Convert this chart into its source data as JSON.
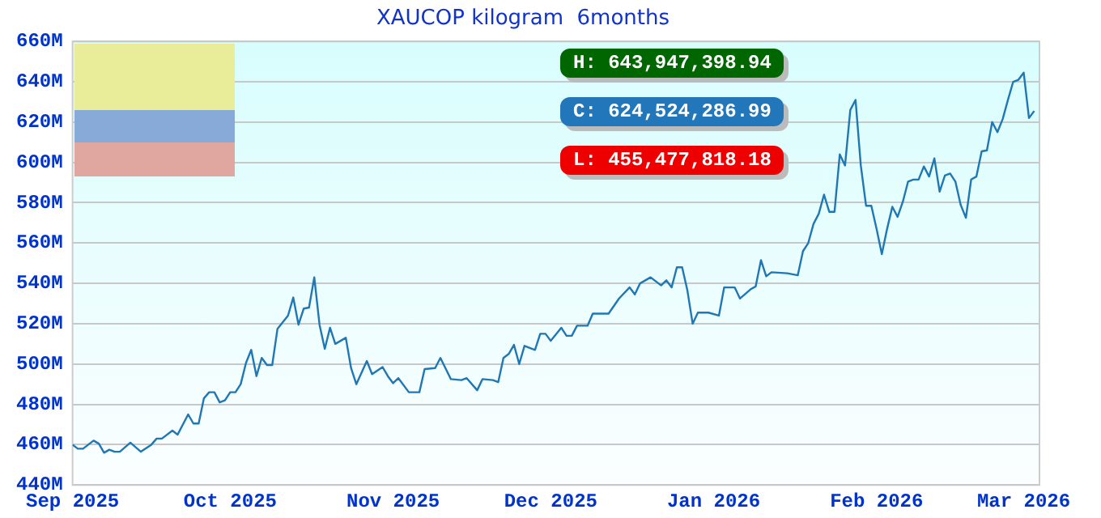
{
  "chart_data": {
    "type": "line",
    "title": "XAUCOP kilogram  6months",
    "annotations": [
      "H: 643,947,398.94",
      "C: 624,524,286.99",
      "L: 455,477,818.18"
    ],
    "xlim": [
      "2025-09-01",
      "2026-03-04"
    ],
    "xticks": [
      {
        "value": "2025-09-01",
        "label": "Sep 2025"
      },
      {
        "value": "2025-10-01",
        "label": "Oct 2025"
      },
      {
        "value": "2025-11-01",
        "label": "Nov 2025"
      },
      {
        "value": "2025-12-01",
        "label": "Dec 2025"
      },
      {
        "value": "2026-01-01",
        "label": "Jan 2026"
      },
      {
        "value": "2026-02-01",
        "label": "Feb 2026"
      },
      {
        "value": "2026-03-01",
        "label": "Mar 2026"
      }
    ],
    "ylim": [
      440,
      660
    ],
    "yticks": [
      {
        "value": 440,
        "label": "440M"
      },
      {
        "value": 460,
        "label": "460M"
      },
      {
        "value": 480,
        "label": "480M"
      },
      {
        "value": 500,
        "label": "500M"
      },
      {
        "value": 520,
        "label": "520M"
      },
      {
        "value": 540,
        "label": "540M"
      },
      {
        "value": 560,
        "label": "560M"
      },
      {
        "value": 580,
        "label": "580M"
      },
      {
        "value": 600,
        "label": "600M"
      },
      {
        "value": 620,
        "label": "620M"
      },
      {
        "value": 640,
        "label": "640M"
      },
      {
        "value": 660,
        "label": "660M"
      }
    ],
    "grid": "y",
    "legend": false,
    "marker": "none",
    "line_style": "solid",
    "series": [
      {
        "color": "#1f77b4",
        "x": [
          "2025-09-01",
          "2025-09-02",
          "2025-09-03",
          "2025-09-05",
          "2025-09-06",
          "2025-09-07",
          "2025-09-08",
          "2025-09-09",
          "2025-09-10",
          "2025-09-12",
          "2025-09-14",
          "2025-09-16",
          "2025-09-17",
          "2025-09-18",
          "2025-09-20",
          "2025-09-21",
          "2025-09-23",
          "2025-09-24",
          "2025-09-25",
          "2025-09-26",
          "2025-09-27",
          "2025-09-28",
          "2025-09-29",
          "2025-09-30",
          "2025-10-01",
          "2025-10-02",
          "2025-10-03",
          "2025-10-04",
          "2025-10-05",
          "2025-10-06",
          "2025-10-07",
          "2025-10-08",
          "2025-10-09",
          "2025-10-10",
          "2025-10-12",
          "2025-10-13",
          "2025-10-14",
          "2025-10-15",
          "2025-10-16",
          "2025-10-17",
          "2025-10-18",
          "2025-10-19",
          "2025-10-20",
          "2025-10-21",
          "2025-10-23",
          "2025-10-24",
          "2025-10-25",
          "2025-10-27",
          "2025-10-28",
          "2025-10-30",
          "2025-10-31",
          "2025-11-01",
          "2025-11-02",
          "2025-11-04",
          "2025-11-06",
          "2025-11-07",
          "2025-11-09",
          "2025-11-10",
          "2025-11-12",
          "2025-11-14",
          "2025-11-15",
          "2025-11-17",
          "2025-11-18",
          "2025-11-20",
          "2025-11-21",
          "2025-11-22",
          "2025-11-23",
          "2025-11-24",
          "2025-11-25",
          "2025-11-26",
          "2025-11-28",
          "2025-11-29",
          "2025-11-30",
          "2025-12-01",
          "2025-12-03",
          "2025-12-04",
          "2025-12-05",
          "2025-12-06",
          "2025-12-08",
          "2025-12-09",
          "2025-12-12",
          "2025-12-14",
          "2025-12-16",
          "2025-12-17",
          "2025-12-18",
          "2025-12-20",
          "2025-12-22",
          "2025-12-23",
          "2025-12-24",
          "2025-12-25",
          "2025-12-26",
          "2025-12-27",
          "2025-12-28",
          "2025-12-29",
          "2025-12-31",
          "2026-01-02",
          "2026-01-03",
          "2026-01-05",
          "2026-01-06",
          "2026-01-08",
          "2026-01-09",
          "2026-01-10",
          "2026-01-11",
          "2026-01-12",
          "2026-01-15",
          "2026-01-17",
          "2026-01-18",
          "2026-01-19",
          "2026-01-20",
          "2026-01-21",
          "2026-01-22",
          "2026-01-23",
          "2026-01-24",
          "2026-01-25",
          "2026-01-26",
          "2026-01-27",
          "2026-01-28",
          "2026-01-29",
          "2026-01-30",
          "2026-01-31",
          "2026-02-01",
          "2026-02-02",
          "2026-02-03",
          "2026-02-04",
          "2026-02-05",
          "2026-02-06",
          "2026-02-07",
          "2026-02-08",
          "2026-02-09",
          "2026-02-10",
          "2026-02-11",
          "2026-02-12",
          "2026-02-13",
          "2026-02-14",
          "2026-02-15",
          "2026-02-16",
          "2026-02-17",
          "2026-02-18",
          "2026-02-19",
          "2026-02-20",
          "2026-02-21",
          "2026-02-22",
          "2026-02-23",
          "2026-02-24",
          "2026-02-25",
          "2026-02-26",
          "2026-02-27",
          "2026-02-28",
          "2026-03-01",
          "2026-03-02",
          "2026-03-03"
        ],
        "values": [
          460,
          458,
          458,
          462,
          460.5,
          456,
          457.5,
          456.5,
          456.5,
          461,
          456.5,
          460,
          463,
          463,
          467,
          465,
          475,
          470.5,
          470.5,
          483,
          486,
          486,
          481,
          482,
          486,
          486,
          490,
          500.5,
          507,
          494,
          503,
          499.5,
          499.5,
          517.5,
          524,
          533,
          519.5,
          527.5,
          528,
          543,
          519.5,
          507.5,
          518,
          510,
          513,
          498,
          490,
          501.5,
          495,
          498.5,
          494,
          490.5,
          493,
          486,
          486,
          497.5,
          498,
          503,
          492.5,
          492,
          493,
          487,
          492.5,
          492,
          491,
          503,
          505,
          509.5,
          500,
          509,
          507,
          515,
          515,
          511.5,
          518,
          514,
          514,
          519,
          519,
          525,
          525,
          532.5,
          538,
          534.5,
          540,
          543,
          539,
          541.5,
          538,
          548,
          548,
          536.5,
          520,
          525.5,
          525.5,
          524,
          538,
          538,
          532.5,
          537,
          538.5,
          551.5,
          543.5,
          545.5,
          545,
          544,
          556,
          560,
          569.5,
          574.5,
          584,
          575.5,
          575.5,
          604,
          598.5,
          626,
          631,
          598.5,
          578.5,
          578.5,
          567,
          554.5,
          567,
          578,
          573,
          580.5,
          590.5,
          591.5,
          591.5,
          598,
          593,
          602,
          585.5,
          593.5,
          594.5,
          590.5,
          579,
          572.5,
          591.5,
          593,
          605.5,
          606,
          620,
          615,
          621.5,
          631,
          640,
          641,
          644.5,
          622,
          625.5
        ]
      }
    ]
  }
}
